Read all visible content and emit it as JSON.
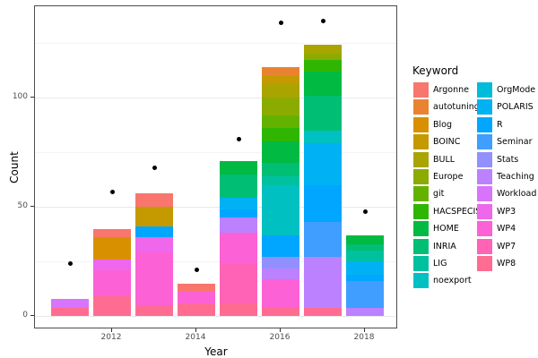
{
  "axes": {
    "x_title": "Year",
    "y_title": "Count",
    "y_ticks": [
      {
        "label": "0",
        "value": 0
      },
      {
        "label": "50",
        "value": 50
      },
      {
        "label": "100",
        "value": 100
      }
    ],
    "y_minor_gridlines": [
      25,
      75,
      125
    ],
    "x_ticks": [
      {
        "label": "2012",
        "value": 2012
      },
      {
        "label": "2014",
        "value": 2014
      },
      {
        "label": "2016",
        "value": 2016
      },
      {
        "label": "2018",
        "value": 2018
      }
    ]
  },
  "legend": {
    "title": "Keyword",
    "items": [
      {
        "label": "Argonne",
        "color": "#F8766D"
      },
      {
        "label": "autotuning",
        "color": "#EA8331"
      },
      {
        "label": "Blog",
        "color": "#D89000"
      },
      {
        "label": "BOINC",
        "color": "#C49A00"
      },
      {
        "label": "BULL",
        "color": "#A9A400"
      },
      {
        "label": "Europe",
        "color": "#8CAB00"
      },
      {
        "label": "git",
        "color": "#64B200"
      },
      {
        "label": "HACSPECIS",
        "color": "#2FB600"
      },
      {
        "label": "HOME",
        "color": "#00BA42"
      },
      {
        "label": "INRIA",
        "color": "#00BF74"
      },
      {
        "label": "LIG",
        "color": "#00C19F"
      },
      {
        "label": "noexport",
        "color": "#00C0C2"
      },
      {
        "label": "OrgMode",
        "color": "#00BBDA"
      },
      {
        "label": "POLARIS",
        "color": "#00B2F3"
      },
      {
        "label": "R",
        "color": "#00A6FF"
      },
      {
        "label": "Seminar",
        "color": "#3F9EFF"
      },
      {
        "label": "Stats",
        "color": "#9290FF"
      },
      {
        "label": "Teaching",
        "color": "#BC81FF"
      },
      {
        "label": "Workload",
        "color": "#D874FC"
      },
      {
        "label": "WP3",
        "color": "#EF67EB"
      },
      {
        "label": "WP4",
        "color": "#FC61D5"
      },
      {
        "label": "WP7",
        "color": "#FF63B6"
      },
      {
        "label": "WP8",
        "color": "#FF6C92"
      }
    ]
  },
  "chart_data": {
    "type": "bar",
    "subtype": "stacked-bars-with-points",
    "title": "",
    "xlabel": "Year",
    "ylabel": "Count",
    "ylim": [
      0,
      142
    ],
    "grid": true,
    "legend_position": "right",
    "x": [
      2011,
      2012,
      2013,
      2014,
      2015,
      2016,
      2017,
      2018
    ],
    "bars": [
      {
        "year": 2011,
        "total": 8,
        "point": 24,
        "segments": [
          [
            "WP8",
            4
          ],
          [
            "Workload",
            4
          ]
        ]
      },
      {
        "year": 2012,
        "total": 40,
        "point": 57,
        "segments": [
          [
            "WP8",
            9
          ],
          [
            "WP4",
            12
          ],
          [
            "WP3",
            5
          ],
          [
            "Blog",
            10
          ],
          [
            "Argonne",
            4
          ]
        ]
      },
      {
        "year": 2013,
        "total": 56,
        "point": 68,
        "segments": [
          [
            "WP8",
            5
          ],
          [
            "WP4",
            24
          ],
          [
            "WP3",
            7
          ],
          [
            "R",
            5
          ],
          [
            "BOINC",
            9
          ],
          [
            "Argonne",
            6
          ]
        ]
      },
      {
        "year": 2014,
        "total": 15,
        "point": 21,
        "segments": [
          [
            "WP8",
            6
          ],
          [
            "WP4",
            5
          ],
          [
            "Argonne",
            4
          ]
        ]
      },
      {
        "year": 2015,
        "total": 71,
        "point": 81,
        "segments": [
          [
            "WP8",
            6
          ],
          [
            "WP7",
            18
          ],
          [
            "WP4",
            14
          ],
          [
            "Teaching",
            7
          ],
          [
            "R",
            4
          ],
          [
            "POLARIS",
            5
          ],
          [
            "INRIA",
            11
          ],
          [
            "HOME",
            6
          ]
        ]
      },
      {
        "year": 2016,
        "total": 114,
        "point": 134,
        "segments": [
          [
            "WP8",
            4
          ],
          [
            "WP4",
            13
          ],
          [
            "Teaching",
            5
          ],
          [
            "Stats",
            5
          ],
          [
            "R",
            10
          ],
          [
            "noexport",
            23
          ],
          [
            "LIG",
            4
          ],
          [
            "INRIA",
            6
          ],
          [
            "HOME",
            10
          ],
          [
            "HACSPECIS",
            6
          ],
          [
            "git",
            6
          ],
          [
            "Europe",
            8
          ],
          [
            "BULL",
            6
          ],
          [
            "BOINC",
            4
          ],
          [
            "autotuning",
            4
          ]
        ]
      },
      {
        "year": 2017,
        "total": 124,
        "point": 135,
        "segments": [
          [
            "WP8",
            4
          ],
          [
            "Teaching",
            23
          ],
          [
            "Seminar",
            16
          ],
          [
            "R",
            17
          ],
          [
            "POLARIS",
            19
          ],
          [
            "noexport",
            6
          ],
          [
            "INRIA",
            16
          ],
          [
            "HOME",
            11
          ],
          [
            "HACSPECIS",
            5
          ],
          [
            "Europe",
            3
          ],
          [
            "BULL",
            4
          ]
        ]
      },
      {
        "year": 2018,
        "total": 37,
        "point": 48,
        "segments": [
          [
            "Teaching",
            4
          ],
          [
            "Seminar",
            12
          ],
          [
            "R",
            3
          ],
          [
            "POLARIS",
            6
          ],
          [
            "LIG",
            5
          ],
          [
            "INRIA",
            3
          ],
          [
            "HOME",
            4
          ]
        ]
      }
    ]
  }
}
